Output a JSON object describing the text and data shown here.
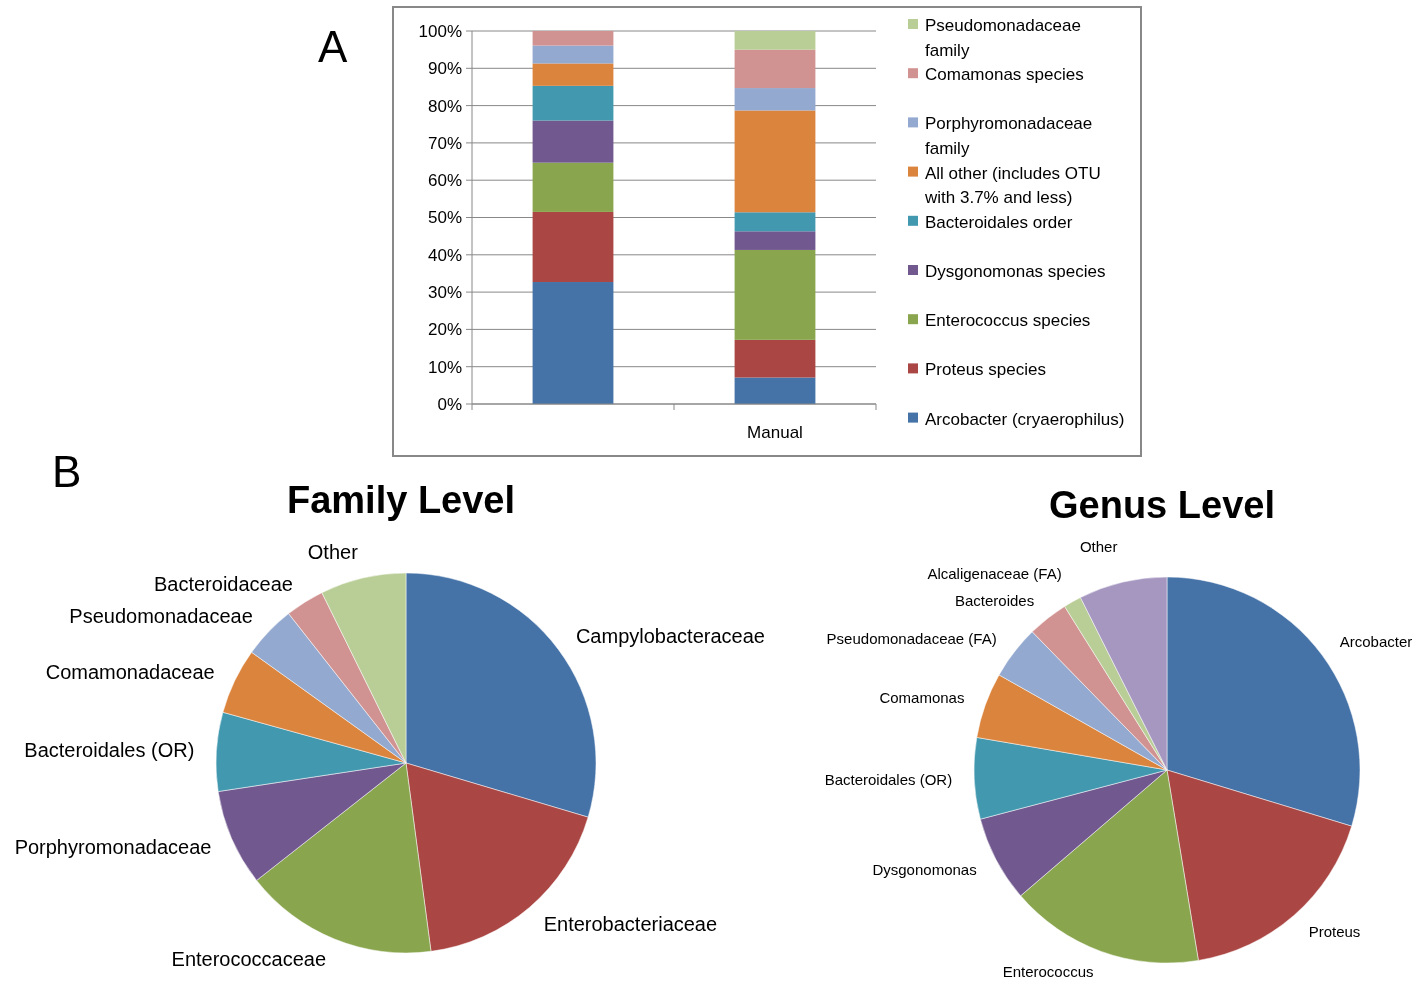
{
  "chart_data": [
    {
      "type": "bar",
      "stacked": true,
      "annotations": [
        "A"
      ],
      "categories": [
        null,
        "Manual"
      ],
      "ylim": [
        0,
        100
      ],
      "yticks": [
        {
          "value": 0,
          "label": "0%"
        },
        {
          "value": 10,
          "label": "10%"
        },
        {
          "value": 20,
          "label": "20%"
        },
        {
          "value": 30,
          "label": "30%"
        },
        {
          "value": 40,
          "label": "40%"
        },
        {
          "value": 50,
          "label": "50%"
        },
        {
          "value": 60,
          "label": "60%"
        },
        {
          "value": 70,
          "label": "70%"
        },
        {
          "value": 80,
          "label": "80%"
        },
        {
          "value": 90,
          "label": "90%"
        },
        {
          "value": 100,
          "label": "100%"
        }
      ],
      "grid": "y",
      "legend": "right",
      "series": [
        {
          "name": "Arcobacter (cryaerophilus)",
          "color": "#4572a7",
          "values": [
            32.7,
            7.1
          ]
        },
        {
          "name": "Proteus species",
          "color": "#aa4643",
          "values": [
            18.8,
            10.1
          ]
        },
        {
          "name": "Enterococcus species",
          "color": "#89a54e",
          "values": [
            13.2,
            24.1
          ]
        },
        {
          "name": "Dysgonomonas species",
          "color": "#71588f",
          "values": [
            11.3,
            5.0
          ]
        },
        {
          "name": "Bacteroidales order",
          "color": "#4198af",
          "values": [
            9.3,
            5.1
          ]
        },
        {
          "name": "All other (includes OTU with 3.7% and less)",
          "color": "#db843d",
          "values": [
            6.0,
            27.3
          ]
        },
        {
          "name": "Porphyromonadaceae family",
          "color": "#93a9cf",
          "values": [
            4.8,
            6.0
          ]
        },
        {
          "name": "Comamonas species",
          "color": "#d19392",
          "values": [
            3.9,
            10.3
          ]
        },
        {
          "name": "Pseudomonadaceae family",
          "color": "#b9cd96",
          "values": [
            0,
            5.0
          ]
        }
      ]
    },
    {
      "type": "pie",
      "title": "Family Level",
      "annotations": [
        "B"
      ],
      "categories": [
        "Campylobacteraceae",
        "Enterobacteriaceae",
        "Enterococcaceae",
        "Porphyromonadaceae",
        "Bacteroidales (OR)",
        "Comamonadaceae",
        "Pseudomonadaceae",
        "Bacteroidaceae",
        "Other"
      ],
      "values": [
        29.6,
        18.3,
        16.5,
        8.2,
        6.7,
        5.6,
        4.5,
        3.3,
        7.3
      ],
      "colors": [
        "#4572a7",
        "#aa4643",
        "#89a54e",
        "#71588f",
        "#4198af",
        "#db843d",
        "#93a9cf",
        "#d19392",
        "#b9cd96"
      ]
    },
    {
      "type": "pie",
      "title": "Genus Level",
      "categories": [
        "Arcobacter",
        "Proteus",
        "Enterococcus",
        "Dysgonomonas",
        "Bacteroidales (OR)",
        "Comamonas",
        "Pseudomonadaceae (FA)",
        "Bacteroides",
        "Alcaligenaceae (FA)",
        "Other"
      ],
      "values": [
        29.7,
        17.7,
        16.3,
        7.2,
        6.8,
        5.5,
        4.5,
        3.4,
        1.5,
        7.4
      ],
      "colors": [
        "#4572a7",
        "#aa4643",
        "#89a54e",
        "#71588f",
        "#4198af",
        "#db843d",
        "#93a9cf",
        "#d19392",
        "#b9cd96",
        "#a597c0"
      ]
    }
  ]
}
